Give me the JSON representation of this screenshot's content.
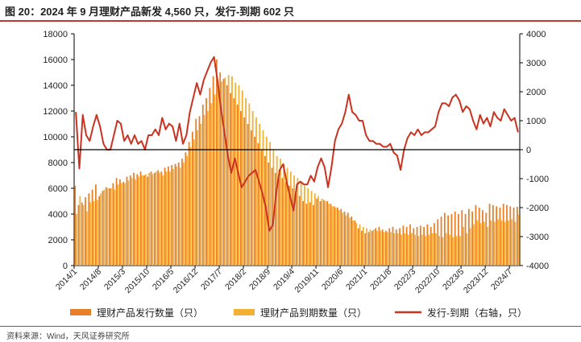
{
  "header": {
    "title": "图 20：2024 年 9 月理财产品新发 4,560 只，发行-到期 602 只"
  },
  "footer": {
    "source": "资料来源：Wind，天风证券研究所"
  },
  "colors": {
    "issue_bar": "#e8802a",
    "maturity_bar": "#f2b134",
    "net_line": "#c9331f",
    "zero_line": "#000000",
    "title_rule": "#c0392b"
  },
  "chart_data": {
    "type": "bar",
    "title": "图 20：2024 年 9 月理财产品新发 4,560 只，发行-到期 602 只",
    "left_axis": {
      "ylim": [
        0,
        18000
      ],
      "ticks": [
        "0",
        "2000",
        "4000",
        "6000",
        "8000",
        "10000",
        "12000",
        "14000",
        "16000",
        "18000"
      ]
    },
    "right_axis": {
      "ylim": [
        -4000,
        4000
      ],
      "ticks": [
        "-4000",
        "-3000",
        "-2000",
        "-1000",
        "0",
        "1000",
        "2000",
        "3000",
        "4000"
      ],
      "label": "右轴"
    },
    "x_start": "2014/1",
    "x_end": "2024/9",
    "x_ticks": [
      "2014/1",
      "2014/8",
      "2015/3",
      "2015/10",
      "2016/5",
      "2016/12",
      "2017/7",
      "2018/2",
      "2018/9",
      "2019/4",
      "2019/11",
      "2020/6",
      "2021/1",
      "2021/8",
      "2022/3",
      "2022/10",
      "2023/5",
      "2023/12",
      "2024/7"
    ],
    "legend": [
      "理财产品发行数量（只）",
      "理财产品到期数量（只）",
      "发行-到期（右轴，只）"
    ],
    "series": [
      {
        "name": "理财产品发行数量（只）",
        "axis": "left",
        "values": [
          6200,
          4700,
          4900,
          5300,
          5600,
          5900,
          6300,
          5400,
          5800,
          6100,
          6000,
          6400,
          6800,
          6700,
          6500,
          6900,
          7000,
          7200,
          7100,
          7300,
          7000,
          6900,
          7300,
          7200,
          7400,
          7300,
          7600,
          7700,
          7800,
          7900,
          8000,
          8300,
          8800,
          9600,
          10400,
          11400,
          11600,
          12500,
          13000,
          13800,
          14700,
          16000,
          15000,
          14500,
          14000,
          13400,
          13000,
          12500,
          12000,
          11500,
          11000,
          10500,
          10000,
          9500,
          9000,
          8500,
          8000,
          7600,
          7200,
          6800,
          6800,
          6500,
          6200,
          6000,
          5600,
          5400,
          5000,
          4800,
          4900,
          4700,
          5200,
          5000,
          5100,
          5000,
          4800,
          4600,
          4500,
          4400,
          4200,
          4100,
          3800,
          3500,
          2900,
          2700,
          2500,
          2600,
          2700,
          2900,
          3000,
          2800,
          2700,
          2900,
          3000,
          2800,
          2900,
          3100,
          3000,
          3200,
          2900,
          3000,
          3100,
          3000,
          3200,
          3000,
          3300,
          3600,
          3800,
          4100,
          3900,
          4000,
          4200,
          4000,
          4300,
          4000,
          4400,
          4200,
          4700,
          4500,
          4300,
          4100,
          4800,
          4700,
          4600,
          4500,
          4800,
          4700,
          4600,
          4500,
          4560
        ]
      },
      {
        "name": "理财产品到期数量（只）",
        "axis": "left",
        "values": [
          4000,
          5400,
          4700,
          4200,
          4900,
          5000,
          5100,
          5600,
          5900,
          6000,
          6000,
          5900,
          6300,
          6400,
          6400,
          6600,
          6800,
          6700,
          6900,
          7000,
          7100,
          7200,
          7100,
          7300,
          7200,
          7000,
          7300,
          7300,
          7500,
          7700,
          7600,
          8000,
          8500,
          9200,
          9800,
          10500,
          11000,
          11700,
          12000,
          12600,
          13300,
          14000,
          14300,
          14600,
          14800,
          14700,
          14200,
          14000,
          13600,
          13000,
          12600,
          12000,
          11500,
          11000,
          10500,
          10000,
          9600,
          9000,
          8500,
          8300,
          7900,
          7600,
          7300,
          7000,
          6800,
          6500,
          6200,
          6000,
          5800,
          5600,
          5400,
          5200,
          5000,
          4800,
          4600,
          4500,
          4300,
          4100,
          3900,
          3700,
          3500,
          3300,
          3200,
          3000,
          2900,
          2800,
          2800,
          2700,
          2700,
          2600,
          2600,
          2600,
          2500,
          2500,
          2400,
          2500,
          2400,
          2500,
          2400,
          2300,
          2400,
          2300,
          2400,
          2500,
          2500,
          2300,
          2200,
          2500,
          2400,
          2200,
          2300,
          2300,
          3000,
          2500,
          2900,
          3200,
          3500,
          3300,
          3400,
          3000,
          3500,
          3400,
          3600,
          3500,
          3400,
          3500,
          3600,
          3400,
          3958
        ]
      },
      {
        "name": "发行-到期（右轴，只）",
        "axis": "right",
        "values": [
          1300,
          -650,
          1200,
          500,
          300,
          800,
          1200,
          800,
          200,
          0,
          0,
          500,
          1000,
          900,
          300,
          500,
          200,
          500,
          200,
          300,
          0,
          500,
          500,
          700,
          500,
          1100,
          700,
          900,
          800,
          300,
          900,
          200,
          500,
          1300,
          1800,
          2300,
          1900,
          2400,
          2700,
          3000,
          3200,
          2400,
          1400,
          600,
          -200,
          -800,
          -300,
          -800,
          -1300,
          -1100,
          -900,
          -800,
          -700,
          -1100,
          -1500,
          -2000,
          -2800,
          -2600,
          -1500,
          -700,
          -500,
          -1100,
          -1600,
          -2100,
          -1200,
          -1100,
          -1200,
          -1200,
          -900,
          -1100,
          -600,
          -300,
          -600,
          -1300,
          -600,
          300,
          700,
          900,
          1300,
          1900,
          1300,
          1200,
          1000,
          1000,
          500,
          300,
          300,
          200,
          200,
          100,
          100,
          200,
          -100,
          -200,
          -700,
          0,
          400,
          600,
          500,
          700,
          500,
          600,
          600,
          700,
          800,
          1300,
          1600,
          1600,
          1500,
          1800,
          1900,
          1700,
          1300,
          1500,
          1400,
          1000,
          700,
          1200,
          900,
          1100,
          800,
          1300,
          1100,
          1000,
          1400,
          1200,
          1000,
          1100,
          602
        ]
      }
    ]
  }
}
